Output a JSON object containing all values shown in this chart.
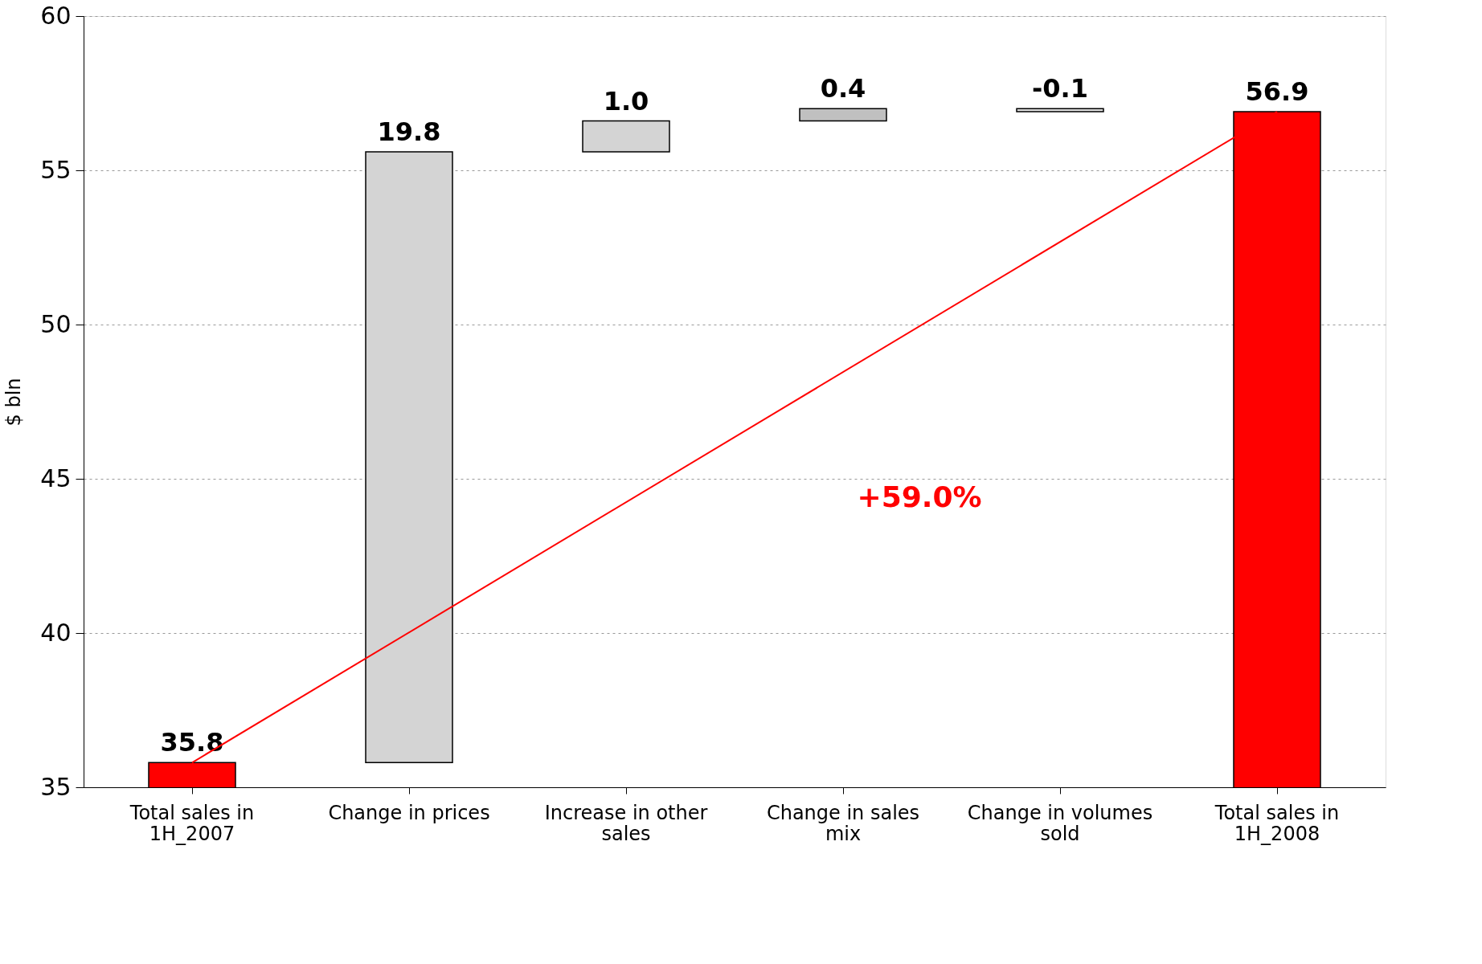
{
  "chart_data": {
    "type": "bar",
    "ylabel": "$ bln",
    "categories": [
      "Total sales in\n1H_2007",
      "Change in prices",
      "Increase in other\nsales",
      "Change in sales\nmix",
      "Change in volumes\nsold",
      "Total sales in\n1H_2008"
    ],
    "values": [
      35.8,
      19.8,
      1.0,
      0.4,
      -0.1,
      56.9
    ],
    "base": [
      0,
      35.8,
      55.6,
      56.6,
      57.0,
      0
    ],
    "colors": [
      "#ff0000",
      "#d4d4d4",
      "#d4d4d4",
      "#c0c0c0",
      "#e0e0e0",
      "#ff0000"
    ],
    "value_labels": [
      "35.8",
      "19.8",
      "1.0",
      "0.4",
      "-0.1",
      "56.9"
    ],
    "ylim": [
      35,
      60
    ],
    "yticks": [
      35,
      40,
      45,
      50,
      55,
      60
    ],
    "grid": "y",
    "annotations": [
      "+59.0%"
    ]
  }
}
